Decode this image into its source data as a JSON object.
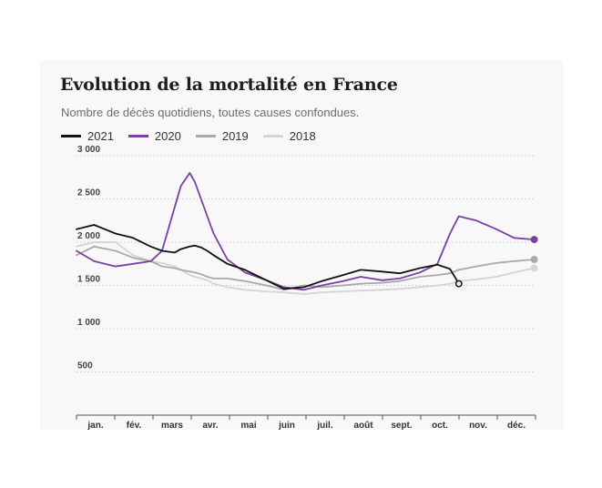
{
  "chart_data": {
    "type": "line",
    "title": "Evolution de la mortalité en France",
    "subtitle": "Nombre de décès quotidiens, toutes causes confondues.",
    "xlabel": "",
    "ylabel": "",
    "ylim": [
      0,
      3000
    ],
    "grid": true,
    "legend_position": "top-left",
    "y_ticks": [
      {
        "value": 3000,
        "label": "3 000"
      },
      {
        "value": 2500,
        "label": "2 500"
      },
      {
        "value": 2000,
        "label": "2 000"
      },
      {
        "value": 1500,
        "label": "1 500"
      },
      {
        "value": 1000,
        "label": "1 000"
      },
      {
        "value": 500,
        "label": "500"
      }
    ],
    "months": [
      "jan.",
      "fév.",
      "mars",
      "avr.",
      "mai",
      "juin",
      "juil.",
      "août",
      "sept.",
      "oct.",
      "nov.",
      "déc."
    ],
    "x": [
      "01-01",
      "01-15",
      "02-01",
      "02-15",
      "03-01",
      "03-10",
      "03-20",
      "03-25",
      "04-01",
      "04-05",
      "04-10",
      "04-15",
      "04-20",
      "05-01",
      "05-15",
      "06-01",
      "06-15",
      "07-01",
      "07-15",
      "08-01",
      "08-15",
      "09-01",
      "09-15",
      "10-01",
      "10-15",
      "10-25",
      "11-01",
      "11-15",
      "12-01",
      "12-15",
      "12-31"
    ],
    "series": [
      {
        "name": "2021",
        "color": "#111111",
        "values": [
          2150,
          2200,
          2100,
          2050,
          1950,
          1900,
          1880,
          1920,
          1950,
          1960,
          1940,
          1900,
          1850,
          1750,
          1680,
          1560,
          1460,
          1480,
          1550,
          1620,
          1680,
          1660,
          1640,
          1700,
          1740,
          1690,
          1520,
          null,
          null,
          null,
          null
        ]
      },
      {
        "name": "2020",
        "color": "#7b3fa0",
        "values": [
          1900,
          1780,
          1720,
          1750,
          1780,
          1900,
          2400,
          2650,
          2800,
          2700,
          2500,
          2300,
          2100,
          1800,
          1650,
          1560,
          1480,
          1450,
          1500,
          1550,
          1600,
          1560,
          1580,
          1650,
          1750,
          2100,
          2300,
          2250,
          2150,
          2050,
          2030
        ]
      },
      {
        "name": "2019",
        "color": "#a8a8a8",
        "values": [
          1850,
          1950,
          1900,
          1820,
          1780,
          1720,
          1700,
          1680,
          1660,
          1650,
          1630,
          1600,
          1580,
          1580,
          1550,
          1500,
          1450,
          1500,
          1480,
          1500,
          1520,
          1530,
          1550,
          1600,
          1620,
          1640,
          1680,
          1720,
          1760,
          1780,
          1800
        ]
      },
      {
        "name": "2018",
        "color": "#d4d4d4",
        "values": [
          1950,
          2000,
          2000,
          1850,
          1780,
          1760,
          1720,
          1680,
          1620,
          1600,
          1580,
          1560,
          1520,
          1480,
          1450,
          1430,
          1420,
          1400,
          1420,
          1430,
          1440,
          1450,
          1460,
          1480,
          1500,
          1520,
          1550,
          1570,
          1600,
          1650,
          1700
        ]
      }
    ]
  }
}
